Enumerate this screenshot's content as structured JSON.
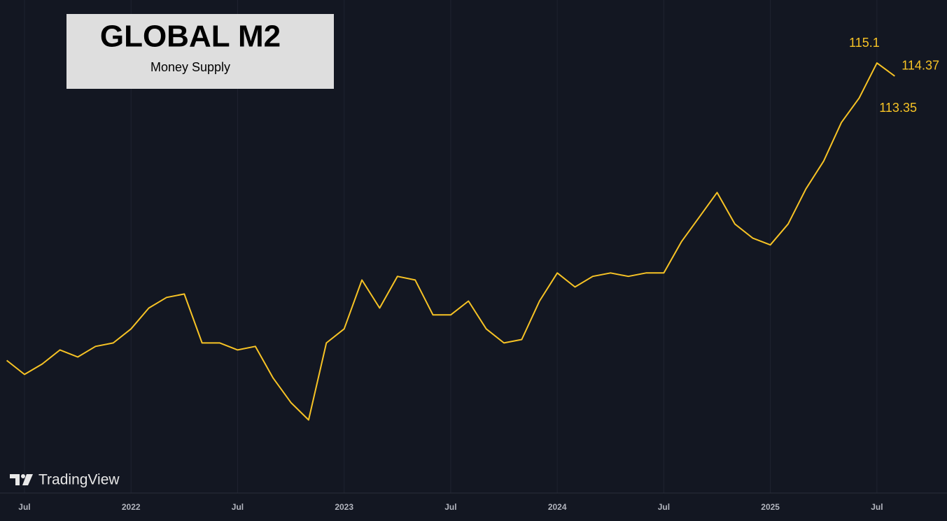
{
  "chart_data": {
    "type": "line",
    "title": "GLOBAL M2",
    "subtitle": "Money Supply",
    "watermark": "TradingView",
    "x": [
      "2021-06",
      "2021-07",
      "2021-08",
      "2021-09",
      "2021-10",
      "2021-11",
      "2021-12",
      "2022-01",
      "2022-02",
      "2022-03",
      "2022-04",
      "2022-05",
      "2022-06",
      "2022-07",
      "2022-08",
      "2022-09",
      "2022-10",
      "2022-11",
      "2022-12",
      "2023-01",
      "2023-02",
      "2023-03",
      "2023-04",
      "2023-05",
      "2023-06",
      "2023-07",
      "2023-08",
      "2023-09",
      "2023-10",
      "2023-11",
      "2023-12",
      "2024-01",
      "2024-02",
      "2024-03",
      "2024-04",
      "2024-05",
      "2024-06",
      "2024-07",
      "2024-08",
      "2024-09",
      "2024-10",
      "2024-11",
      "2024-12",
      "2025-01",
      "2025-02",
      "2025-03",
      "2025-04",
      "2025-05",
      "2025-06",
      "2025-07",
      "2025-08"
    ],
    "values": [
      98.57,
      97.79,
      98.37,
      99.15,
      98.76,
      99.35,
      99.54,
      100.32,
      101.48,
      102.07,
      102.26,
      99.54,
      99.54,
      99.15,
      99.35,
      97.59,
      96.23,
      95.26,
      99.54,
      100.32,
      103.04,
      101.48,
      103.24,
      103.04,
      101.1,
      101.1,
      101.87,
      100.32,
      99.54,
      99.73,
      101.87,
      103.43,
      102.65,
      103.24,
      103.43,
      103.24,
      103.43,
      103.43,
      105.18,
      106.54,
      107.9,
      106.15,
      105.37,
      104.99,
      106.15,
      108.1,
      109.65,
      111.79,
      113.15,
      115.1,
      114.37
    ],
    "color": "#f7c325",
    "xlim": [
      "2021-06",
      "2025-10"
    ],
    "ylim": [
      91.2,
      118.6
    ],
    "xticks": [
      {
        "value": "2021-07",
        "label": "Jul"
      },
      {
        "value": "2022-01",
        "label": "2022"
      },
      {
        "value": "2022-07",
        "label": "Jul"
      },
      {
        "value": "2023-01",
        "label": "2023"
      },
      {
        "value": "2023-07",
        "label": "Jul"
      },
      {
        "value": "2024-01",
        "label": "2024"
      },
      {
        "value": "2024-07",
        "label": "Jul"
      },
      {
        "value": "2025-01",
        "label": "2025"
      },
      {
        "value": "2025-07",
        "label": "Jul"
      }
    ],
    "grid": true,
    "annotations": [
      {
        "x": "2025-07",
        "value": 115.1
      },
      {
        "x": "2025-08",
        "value": 114.37
      },
      {
        "x": "2025-08",
        "value": 113.35
      }
    ]
  }
}
